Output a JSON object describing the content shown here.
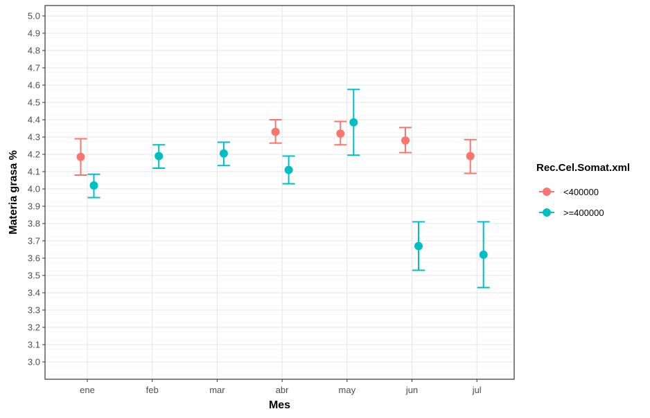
{
  "chart_data": {
    "type": "scatter",
    "xlabel": "Mes",
    "ylabel": "Materia grasa %",
    "categories": [
      "ene",
      "feb",
      "mar",
      "abr",
      "may",
      "jun",
      "jul"
    ],
    "ylim": [
      2.9,
      5.06
    ],
    "yticks": [
      "3.0",
      "3.1",
      "3.2",
      "3.3",
      "3.4",
      "3.5",
      "3.6",
      "3.7",
      "3.8",
      "3.9",
      "4.0",
      "4.1",
      "4.2",
      "4.3",
      "4.4",
      "4.5",
      "4.6",
      "4.7",
      "4.8",
      "4.9",
      "5.0"
    ],
    "grid": true,
    "legend": {
      "title": "Rec.Cel.Somat.xml",
      "position": "right"
    },
    "series": [
      {
        "name": "<400000",
        "color": "#F8766D",
        "points": [
          {
            "x": "ene",
            "y": 4.185,
            "low": 4.08,
            "high": 4.29
          },
          {
            "x": "abr",
            "y": 4.33,
            "low": 4.265,
            "high": 4.4
          },
          {
            "x": "may",
            "y": 4.32,
            "low": 4.255,
            "high": 4.39
          },
          {
            "x": "jun",
            "y": 4.28,
            "low": 4.21,
            "high": 4.355
          },
          {
            "x": "jul",
            "y": 4.19,
            "low": 4.09,
            "high": 4.285
          }
        ]
      },
      {
        "name": ">=400000",
        "color": "#00BFC4",
        "points": [
          {
            "x": "ene",
            "y": 4.02,
            "low": 3.95,
            "high": 4.085
          },
          {
            "x": "feb",
            "y": 4.19,
            "low": 4.12,
            "high": 4.255
          },
          {
            "x": "mar",
            "y": 4.205,
            "low": 4.135,
            "high": 4.27
          },
          {
            "x": "abr",
            "y": 4.11,
            "low": 4.03,
            "high": 4.19
          },
          {
            "x": "may",
            "y": 4.385,
            "low": 4.195,
            "high": 4.575
          },
          {
            "x": "jun",
            "y": 3.67,
            "low": 3.53,
            "high": 3.81
          },
          {
            "x": "jul",
            "y": 3.62,
            "low": 3.43,
            "high": 3.81
          }
        ]
      }
    ]
  }
}
